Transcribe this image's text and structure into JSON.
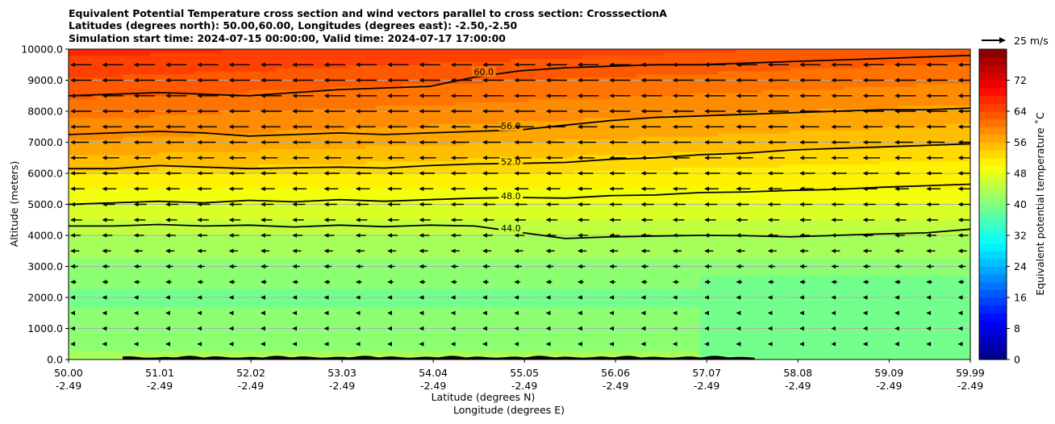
{
  "chart_data": {
    "type": "heatmap",
    "title_lines": [
      "Equivalent Potential Temperature cross section and wind vectors parallel to cross section: CrosssectionA",
      "Latitudes (degrees north): 50.00,60.00, Longitudes (degrees east): -2.50,-2.50",
      "Simulation start time: 2024-07-15 00:00:00, Valid time: 2024-07-17 17:00:00"
    ],
    "xlabel_lines": [
      "Latitude (degrees N)",
      "Longitude (degrees E)"
    ],
    "ylabel": "Altitude (meters)",
    "x_range": [
      50.0,
      59.99
    ],
    "ylim": [
      0,
      10000
    ],
    "grid": "horizontal",
    "x_ticks": [
      {
        "lat": "50.00",
        "lon": "-2.49",
        "value": 50.0
      },
      {
        "lat": "51.01",
        "lon": "-2.49",
        "value": 51.01
      },
      {
        "lat": "52.02",
        "lon": "-2.49",
        "value": 52.02
      },
      {
        "lat": "53.03",
        "lon": "-2.49",
        "value": 53.03
      },
      {
        "lat": "54.04",
        "lon": "-2.49",
        "value": 54.04
      },
      {
        "lat": "55.05",
        "lon": "-2.49",
        "value": 55.05
      },
      {
        "lat": "56.06",
        "lon": "-2.49",
        "value": 56.06
      },
      {
        "lat": "57.07",
        "lon": "-2.49",
        "value": 57.07
      },
      {
        "lat": "58.08",
        "lon": "-2.49",
        "value": 58.08
      },
      {
        "lat": "59.09",
        "lon": "-2.49",
        "value": 59.09
      },
      {
        "lat": "59.99",
        "lon": "-2.49",
        "value": 59.99
      }
    ],
    "y_ticks": [
      {
        "label": "0.0",
        "value": 0
      },
      {
        "label": "1000.0",
        "value": 1000
      },
      {
        "label": "2000.0",
        "value": 2000
      },
      {
        "label": "3000.0",
        "value": 3000
      },
      {
        "label": "4000.0",
        "value": 4000
      },
      {
        "label": "5000.0",
        "value": 5000
      },
      {
        "label": "6000.0",
        "value": 6000
      },
      {
        "label": "7000.0",
        "value": 7000
      },
      {
        "label": "8000.0",
        "value": 8000
      },
      {
        "label": "9000.0",
        "value": 9000
      },
      {
        "label": "10000.0",
        "value": 10000
      }
    ],
    "colorbar": {
      "label": "Equivalent potential temperature $^\\circ$C",
      "label_display": "Equivalent potential temperature ˚C",
      "range": [
        0,
        80
      ],
      "ticks": [
        {
          "label": "0",
          "value": 0
        },
        {
          "label": "8",
          "value": 8
        },
        {
          "label": "16",
          "value": 16
        },
        {
          "label": "24",
          "value": 24
        },
        {
          "label": "32",
          "value": 32
        },
        {
          "label": "40",
          "value": 40
        },
        {
          "label": "48",
          "value": 48
        },
        {
          "label": "56",
          "value": 56
        },
        {
          "label": "64",
          "value": 64
        },
        {
          "label": "72",
          "value": 72
        }
      ],
      "colormap": "jet"
    },
    "quiver_key": {
      "label": "25 m/s",
      "speed": 25
    },
    "wind": {
      "direction": "toward lower latitude (southward along section)",
      "aloft_speed_ms": 22,
      "surface_speed_ms": 3
    },
    "theta_e_profile": [
      {
        "alt": 0,
        "value": 41
      },
      {
        "alt": 1000,
        "value": 40
      },
      {
        "alt": 2000,
        "value": 39
      },
      {
        "alt": 3000,
        "value": 41
      },
      {
        "alt": 4000,
        "value": 44
      },
      {
        "alt": 5000,
        "value": 48
      },
      {
        "alt": 6000,
        "value": 52
      },
      {
        "alt": 7000,
        "value": 56
      },
      {
        "alt": 8000,
        "value": 59
      },
      {
        "alt": 9000,
        "value": 62
      },
      {
        "alt": 10000,
        "value": 65
      }
    ],
    "contour_lines": [
      {
        "level": "44.0",
        "label_lat": 54.9,
        "label_alt": 4150,
        "points": [
          [
            50.0,
            4300
          ],
          [
            50.5,
            4300
          ],
          [
            51.0,
            4350
          ],
          [
            51.5,
            4300
          ],
          [
            52.0,
            4330
          ],
          [
            52.5,
            4270
          ],
          [
            53.0,
            4330
          ],
          [
            53.5,
            4280
          ],
          [
            54.0,
            4330
          ],
          [
            54.5,
            4300
          ],
          [
            55.0,
            4100
          ],
          [
            55.5,
            3900
          ],
          [
            56.0,
            3950
          ],
          [
            56.5,
            3980
          ],
          [
            57.0,
            4000
          ],
          [
            57.5,
            3990
          ],
          [
            58.0,
            3950
          ],
          [
            58.5,
            4000
          ],
          [
            59.0,
            4050
          ],
          [
            59.5,
            4080
          ],
          [
            59.99,
            4200
          ]
        ]
      },
      {
        "level": "48.0",
        "label_lat": 54.9,
        "label_alt": 5200,
        "points": [
          [
            50.0,
            5000
          ],
          [
            50.5,
            5050
          ],
          [
            51.0,
            5100
          ],
          [
            51.5,
            5050
          ],
          [
            52.0,
            5130
          ],
          [
            52.5,
            5080
          ],
          [
            53.0,
            5150
          ],
          [
            53.5,
            5100
          ],
          [
            54.0,
            5150
          ],
          [
            54.5,
            5200
          ],
          [
            55.0,
            5220
          ],
          [
            55.5,
            5200
          ],
          [
            56.0,
            5280
          ],
          [
            56.5,
            5300
          ],
          [
            57.0,
            5380
          ],
          [
            57.5,
            5400
          ],
          [
            58.0,
            5450
          ],
          [
            58.5,
            5480
          ],
          [
            59.0,
            5550
          ],
          [
            59.5,
            5600
          ],
          [
            59.99,
            5650
          ]
        ]
      },
      {
        "level": "52.0",
        "label_lat": 54.9,
        "label_alt": 6300,
        "points": [
          [
            50.0,
            6150
          ],
          [
            50.5,
            6150
          ],
          [
            51.0,
            6250
          ],
          [
            51.5,
            6200
          ],
          [
            52.0,
            6150
          ],
          [
            52.5,
            6180
          ],
          [
            53.0,
            6200
          ],
          [
            53.5,
            6170
          ],
          [
            54.0,
            6250
          ],
          [
            54.5,
            6300
          ],
          [
            55.0,
            6320
          ],
          [
            55.5,
            6350
          ],
          [
            56.0,
            6450
          ],
          [
            56.5,
            6500
          ],
          [
            57.0,
            6600
          ],
          [
            57.5,
            6650
          ],
          [
            58.0,
            6750
          ],
          [
            58.5,
            6800
          ],
          [
            59.0,
            6850
          ],
          [
            59.5,
            6900
          ],
          [
            59.99,
            6950
          ]
        ]
      },
      {
        "level": "56.0",
        "label_lat": 54.9,
        "label_alt": 7450,
        "points": [
          [
            50.0,
            7250
          ],
          [
            50.5,
            7300
          ],
          [
            51.0,
            7350
          ],
          [
            51.5,
            7300
          ],
          [
            52.0,
            7200
          ],
          [
            52.5,
            7250
          ],
          [
            53.0,
            7300
          ],
          [
            53.5,
            7250
          ],
          [
            54.0,
            7300
          ],
          [
            54.5,
            7350
          ],
          [
            55.0,
            7400
          ],
          [
            55.5,
            7550
          ],
          [
            56.0,
            7700
          ],
          [
            56.5,
            7800
          ],
          [
            57.0,
            7850
          ],
          [
            57.5,
            7900
          ],
          [
            58.0,
            7950
          ],
          [
            58.5,
            8000
          ],
          [
            59.0,
            8050
          ],
          [
            59.5,
            8050
          ],
          [
            59.99,
            8100
          ]
        ]
      },
      {
        "level": "60.0",
        "label_lat": 54.6,
        "label_alt": 9200,
        "points": [
          [
            50.0,
            8500
          ],
          [
            50.5,
            8550
          ],
          [
            51.0,
            8600
          ],
          [
            51.5,
            8550
          ],
          [
            52.0,
            8500
          ],
          [
            52.5,
            8600
          ],
          [
            53.0,
            8700
          ],
          [
            53.5,
            8750
          ],
          [
            54.0,
            8800
          ],
          [
            54.5,
            9100
          ],
          [
            55.0,
            9300
          ],
          [
            55.5,
            9400
          ],
          [
            56.0,
            9450
          ],
          [
            56.5,
            9500
          ],
          [
            57.0,
            9500
          ],
          [
            57.5,
            9550
          ],
          [
            58.0,
            9600
          ],
          [
            58.5,
            9650
          ],
          [
            59.0,
            9700
          ],
          [
            59.5,
            9750
          ],
          [
            59.99,
            9800
          ]
        ]
      }
    ]
  }
}
